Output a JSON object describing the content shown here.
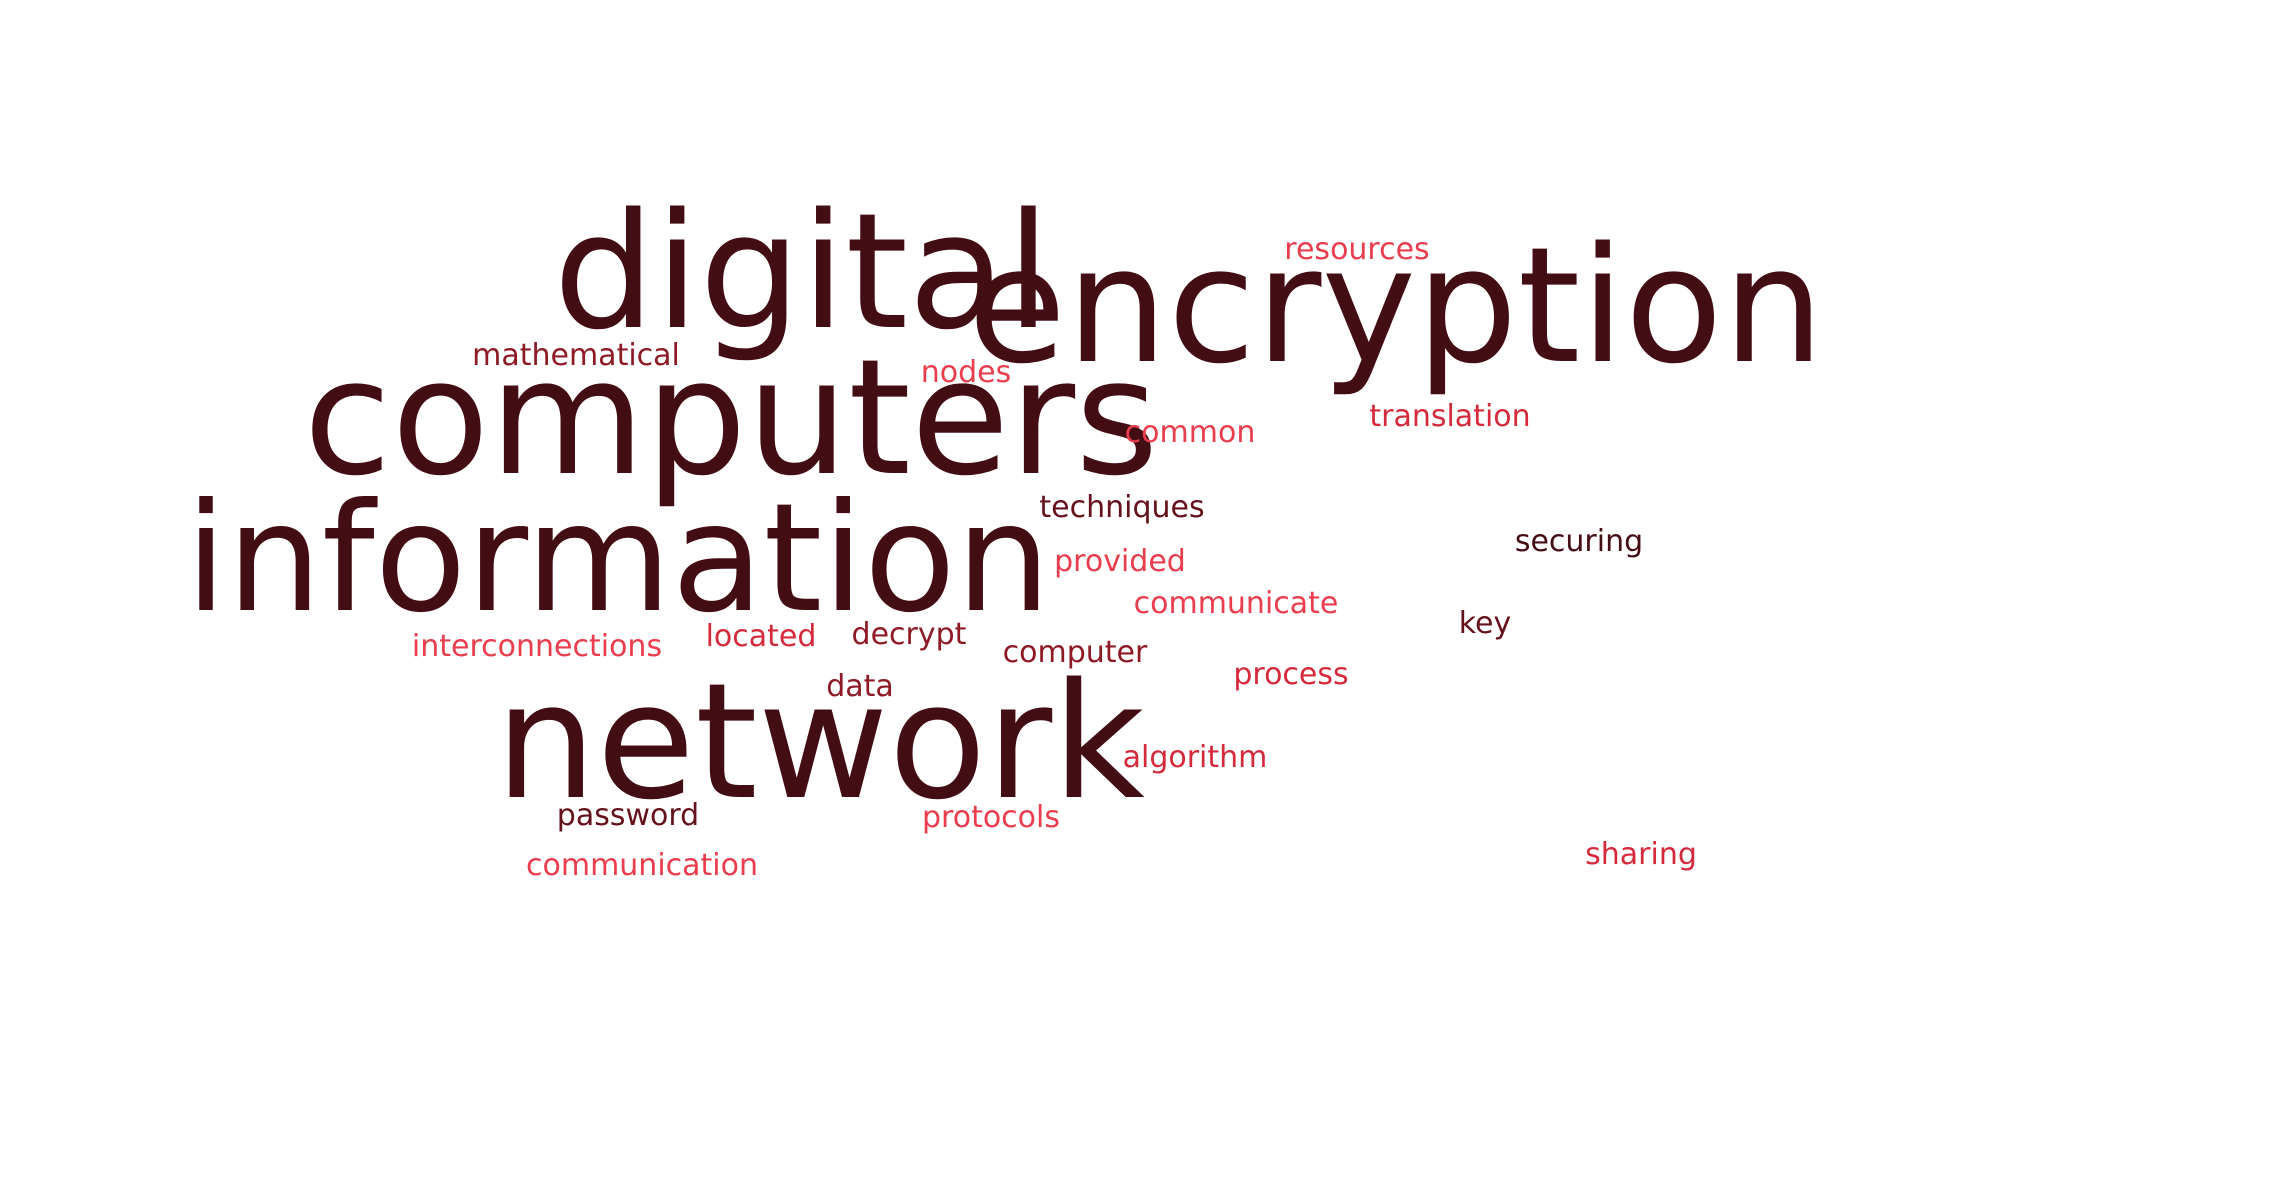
{
  "word_cloud": {
    "words": [
      {
        "text": "digital",
        "tier": 1
      },
      {
        "text": "encryption",
        "tier": 1
      },
      {
        "text": "computers",
        "tier": 1
      },
      {
        "text": "information",
        "tier": 1
      },
      {
        "text": "network",
        "tier": 1
      },
      {
        "text": "resources",
        "tier": 5
      },
      {
        "text": "mathematical",
        "tier": 3
      },
      {
        "text": "nodes",
        "tier": 5
      },
      {
        "text": "common",
        "tier": 5
      },
      {
        "text": "translation",
        "tier": 4
      },
      {
        "text": "techniques",
        "tier": 2
      },
      {
        "text": "securing",
        "tier": 1
      },
      {
        "text": "provided",
        "tier": 5
      },
      {
        "text": "communicate",
        "tier": 5
      },
      {
        "text": "key",
        "tier": 2
      },
      {
        "text": "interconnections",
        "tier": 5
      },
      {
        "text": "located",
        "tier": 4
      },
      {
        "text": "decrypt",
        "tier": 3
      },
      {
        "text": "computer",
        "tier": 3
      },
      {
        "text": "process",
        "tier": 4
      },
      {
        "text": "data",
        "tier": 3
      },
      {
        "text": "algorithm",
        "tier": 4
      },
      {
        "text": "password",
        "tier": 2
      },
      {
        "text": "protocols",
        "tier": 5
      },
      {
        "text": "communication",
        "tier": 5
      },
      {
        "text": "sharing",
        "tier": 4
      }
    ],
    "colors": {
      "tier-1": "#430d14",
      "tier-2": "#64111b",
      "tier-3": "#8e1a26",
      "tier-4": "#d42a3c",
      "tier-5": "#ea3d4d"
    }
  }
}
